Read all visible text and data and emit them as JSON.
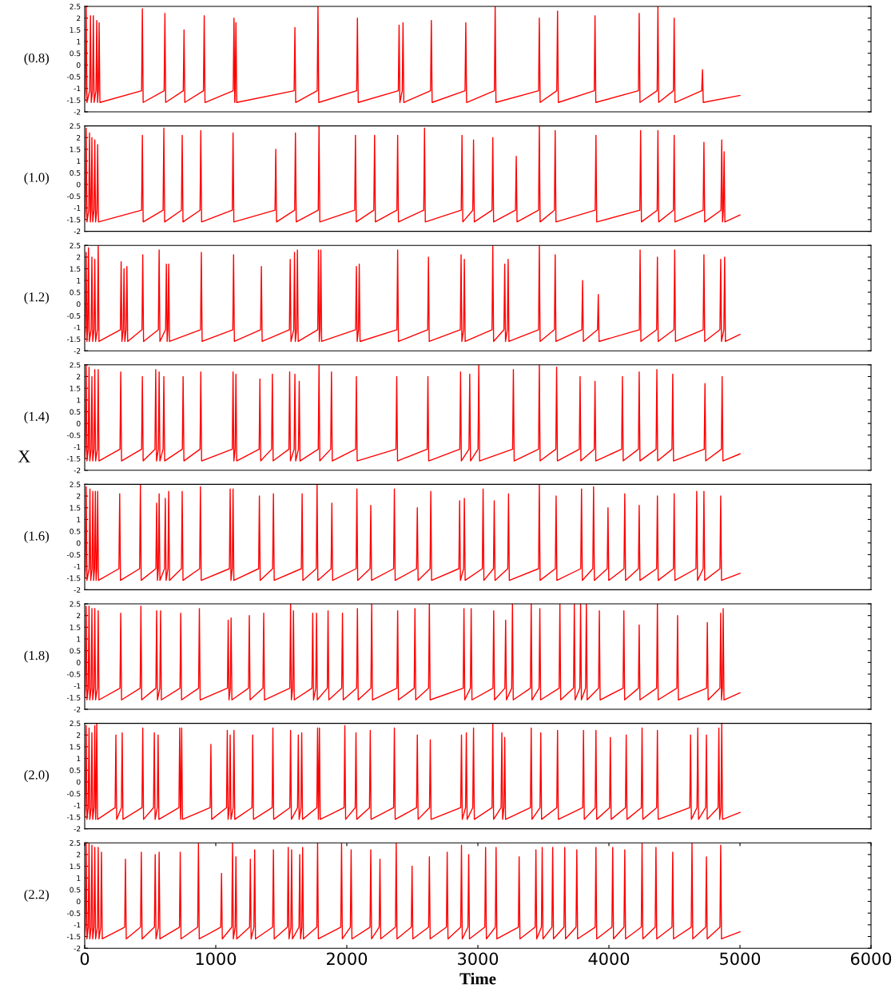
{
  "chart_data": [
    {
      "type": "line",
      "ylabel": "(0.8)",
      "color": "#ff0000",
      "xlim": [
        0,
        6000
      ],
      "ylim": [
        -2,
        2.5
      ],
      "yticks": [
        -2,
        -1.5,
        -1,
        -0.5,
        0,
        0.5,
        1,
        1.5,
        2,
        2.5
      ],
      "tick_labels": "y",
      "x": [
        0,
        5,
        11,
        17,
        38,
        44,
        50,
        60,
        66,
        72,
        86,
        92,
        98,
        104,
        110,
        116,
        434,
        440,
        446,
        606,
        612,
        618,
        752,
        758,
        764,
        906,
        912,
        918,
        1133,
        1139,
        1145,
        1148,
        1154,
        1160,
        1598,
        1604,
        1610,
        1774,
        1780,
        1786,
        2075,
        2081,
        2087,
        2393,
        2399,
        2405,
        2423,
        2429,
        2435,
        2639,
        2645,
        2651,
        2902,
        2908,
        2914,
        3126,
        3132,
        3138,
        3463,
        3469,
        3475,
        3602,
        3608,
        3614,
        3888,
        3894,
        3900,
        4225,
        4231,
        4237,
        4368,
        4374,
        4380,
        4492,
        4498,
        4504,
        4708,
        4714,
        4720,
        5000
      ],
      "values": [
        -1.5,
        -1.1,
        2.5,
        -1.6,
        -1.1,
        2.1,
        -1.6,
        -1.1,
        2.1,
        -1.6,
        -1.1,
        1.9,
        -1.6,
        -1.1,
        1.8,
        -1.6,
        -1.1,
        2.4,
        -1.6,
        -1.1,
        2.2,
        -1.6,
        -1.1,
        1.5,
        -1.6,
        -1.1,
        2.1,
        -1.6,
        -1.1,
        2.0,
        -1.6,
        -1.1,
        1.8,
        -1.6,
        -1.1,
        1.6,
        -1.6,
        -1.1,
        2.5,
        -1.6,
        -1.1,
        2.0,
        -1.6,
        -1.1,
        1.7,
        -1.6,
        -1.1,
        1.8,
        -1.6,
        -1.1,
        1.9,
        -1.6,
        -1.1,
        1.8,
        -1.6,
        -1.1,
        2.5,
        -1.6,
        -1.1,
        2.0,
        -1.6,
        -1.1,
        2.3,
        -1.6,
        -1.1,
        2.1,
        -1.6,
        -1.1,
        2.2,
        -1.6,
        -1.1,
        2.5,
        -1.6,
        -1.1,
        2.0,
        -1.6,
        -1.1,
        -0.2,
        -1.6,
        -1.3
      ]
    },
    {
      "type": "line",
      "ylabel": "(1.0)",
      "color": "#ff0000",
      "xlim": [
        0,
        6000
      ],
      "ylim": [
        -2,
        2.5
      ],
      "yticks": [
        -2,
        -1.5,
        -1,
        -0.5,
        0,
        0.5,
        1,
        1.5,
        2,
        2.5
      ],
      "tick_labels": "y",
      "x": [
        0,
        5,
        11,
        17,
        31,
        37,
        43,
        49,
        55,
        61,
        71,
        77,
        83,
        93,
        99,
        105,
        434,
        440,
        446,
        598,
        604,
        610,
        738,
        744,
        750,
        880,
        886,
        892,
        1126,
        1132,
        1138,
        1452,
        1458,
        1464,
        1602,
        1608,
        1614,
        1782,
        1788,
        1794,
        2060,
        2066,
        2072,
        2206,
        2212,
        2218,
        2382,
        2388,
        2394,
        2587,
        2593,
        2599,
        2873,
        2879,
        2885,
        2961,
        2967,
        2973,
        3108,
        3114,
        3120,
        3287,
        3293,
        3299,
        3463,
        3469,
        3475,
        3584,
        3590,
        3596,
        3895,
        3901,
        3907,
        4236,
        4242,
        4248,
        4368,
        4374,
        4380,
        4492,
        4498,
        4504,
        4719,
        4725,
        4731,
        4855,
        4861,
        4867,
        4873,
        4879,
        4885,
        5000
      ],
      "values": [
        -1.5,
        -1.1,
        2.4,
        -1.6,
        -1.1,
        2.2,
        -1.6,
        -1.1,
        2.0,
        -1.6,
        -1.1,
        1.9,
        -1.6,
        -1.1,
        1.7,
        -1.6,
        -1.1,
        2.1,
        -1.6,
        -1.1,
        2.4,
        -1.6,
        -1.1,
        2.1,
        -1.6,
        -1.1,
        2.3,
        -1.6,
        -1.1,
        2.2,
        -1.6,
        -1.1,
        1.5,
        -1.6,
        -1.1,
        2.2,
        -1.6,
        -1.1,
        2.5,
        -1.6,
        -1.1,
        2.1,
        -1.6,
        -1.1,
        2.1,
        -1.6,
        -1.1,
        2.1,
        -1.6,
        -1.1,
        2.4,
        -1.6,
        -1.1,
        2.1,
        -1.6,
        -1.1,
        1.9,
        -1.6,
        -1.1,
        2.0,
        -1.6,
        -1.1,
        1.2,
        -1.6,
        -1.1,
        2.5,
        -1.6,
        -1.1,
        2.3,
        -1.6,
        -1.1,
        2.1,
        -1.6,
        -1.1,
        2.3,
        -1.6,
        -1.1,
        2.3,
        -1.6,
        -1.1,
        2.1,
        -1.6,
        -1.1,
        1.8,
        -1.6,
        -1.1,
        1.9,
        -1.6,
        -1.1,
        1.4,
        -1.6,
        -1.3
      ]
    },
    {
      "type": "line",
      "ylabel": "(1.2)",
      "color": "#ff0000",
      "xlim": [
        0,
        6000
      ],
      "ylim": [
        -2,
        2.5
      ],
      "yticks": [
        -2,
        -1.5,
        -1,
        -0.5,
        0,
        0.5,
        1,
        1.5,
        2,
        2.5
      ],
      "tick_labels": "y",
      "x": [
        0,
        5,
        11,
        17,
        23,
        29,
        35,
        49,
        55,
        61,
        71,
        77,
        83,
        97,
        103,
        109,
        272,
        278,
        284,
        294,
        300,
        306,
        316,
        322,
        328,
        437,
        443,
        449,
        562,
        568,
        574,
        617,
        623,
        629,
        635,
        641,
        647,
        884,
        890,
        896,
        1130,
        1136,
        1142,
        1342,
        1348,
        1354,
        1562,
        1568,
        1574,
        1595,
        1601,
        1607,
        1617,
        1623,
        1629,
        1778,
        1784,
        1790,
        1796,
        1802,
        1808,
        2067,
        2073,
        2079,
        2089,
        2095,
        2101,
        2382,
        2388,
        2394,
        2617,
        2623,
        2629,
        2866,
        2872,
        2878,
        2891,
        2897,
        2903,
        3108,
        3114,
        3120,
        3199,
        3205,
        3211,
        3225,
        3231,
        3237,
        3463,
        3469,
        3475,
        3584,
        3590,
        3596,
        3793,
        3799,
        3805,
        3913,
        3919,
        3925,
        4232,
        4238,
        4244,
        4364,
        4370,
        4376,
        4496,
        4502,
        4508,
        4719,
        4725,
        4731,
        4847,
        4853,
        4859,
        4877,
        4883,
        4889,
        5000
      ],
      "values": [
        -1.5,
        -1.1,
        2.2,
        -1.6,
        -1.1,
        2.4,
        -1.6,
        -1.1,
        2.0,
        -1.6,
        -1.1,
        1.9,
        -1.6,
        -1.1,
        2.5,
        -1.6,
        -1.1,
        1.8,
        -1.6,
        -1.1,
        1.5,
        -1.6,
        -1.1,
        1.6,
        -1.6,
        -1.1,
        2.1,
        -1.6,
        -1.1,
        2.3,
        -1.6,
        -1.1,
        1.7,
        -1.6,
        -1.1,
        1.7,
        -1.6,
        -1.1,
        2.2,
        -1.6,
        -1.1,
        2.1,
        -1.6,
        -1.1,
        1.6,
        -1.6,
        -1.1,
        1.9,
        -1.6,
        -1.1,
        2.2,
        -1.6,
        -1.1,
        2.3,
        -1.6,
        -1.1,
        2.3,
        -1.6,
        -1.1,
        2.3,
        -1.6,
        -1.1,
        1.6,
        -1.6,
        -1.1,
        1.7,
        -1.6,
        -1.1,
        2.3,
        -1.6,
        -1.1,
        2.0,
        -1.6,
        -1.1,
        2.1,
        -1.6,
        -1.1,
        1.9,
        -1.6,
        -1.1,
        2.5,
        -1.6,
        -1.1,
        1.7,
        -1.6,
        -1.1,
        1.9,
        -1.6,
        -1.1,
        2.5,
        -1.6,
        -1.1,
        2.1,
        -1.6,
        -1.1,
        1.0,
        -1.6,
        -1.1,
        0.4,
        -1.6,
        -1.1,
        2.3,
        -1.6,
        -1.1,
        2.0,
        -1.6,
        -1.1,
        2.3,
        -1.6,
        -1.1,
        2.1,
        -1.6,
        -1.1,
        1.9,
        -1.6,
        -1.1,
        2.0,
        -1.6,
        -1.3
      ]
    },
    {
      "type": "line",
      "ylabel": "(1.4)",
      "color": "#ff0000",
      "xlim": [
        0,
        6000
      ],
      "ylim": [
        -2,
        2.5
      ],
      "yticks": [
        -2,
        -1.5,
        -1,
        -0.5,
        0,
        0.5,
        1,
        1.5,
        2,
        2.5
      ],
      "tick_labels": "y",
      "x": [
        0,
        5,
        11,
        17,
        27,
        33,
        39,
        49,
        55,
        61,
        71,
        77,
        83,
        97,
        103,
        109,
        269,
        275,
        281,
        434,
        440,
        446,
        536,
        542,
        548,
        562,
        568,
        574,
        598,
        604,
        610,
        745,
        751,
        757,
        880,
        886,
        892,
        1126,
        1132,
        1138,
        1148,
        1154,
        1160,
        1331,
        1337,
        1343,
        1426,
        1432,
        1438,
        1558,
        1564,
        1570,
        1598,
        1604,
        1610,
        1631,
        1637,
        1643,
        1782,
        1788,
        1794,
        1877,
        1883,
        1889,
        2067,
        2073,
        2079,
        2375,
        2381,
        2387,
        2613,
        2619,
        2625,
        2862,
        2868,
        2874,
        2932,
        2938,
        2944,
        3001,
        3007,
        3013,
        3265,
        3271,
        3277,
        3463,
        3469,
        3475,
        3595,
        3601,
        3607,
        3774,
        3780,
        3786,
        3888,
        3894,
        3900,
        4097,
        4103,
        4109,
        4225,
        4231,
        4237,
        4360,
        4366,
        4372,
        4481,
        4487,
        4493,
        4727,
        4733,
        4739,
        4858,
        4864,
        4870,
        5000
      ],
      "values": [
        -1.5,
        -1.1,
        2.5,
        -1.6,
        -1.1,
        2.4,
        -1.6,
        -1.1,
        2.0,
        -1.6,
        -1.1,
        2.3,
        -1.6,
        -1.1,
        2.3,
        -1.6,
        -1.1,
        2.2,
        -1.6,
        -1.1,
        2.0,
        -1.6,
        -1.1,
        2.3,
        -1.6,
        -1.1,
        2.2,
        -1.6,
        -1.1,
        2.0,
        -1.6,
        -1.1,
        2.0,
        -1.6,
        -1.1,
        2.2,
        -1.6,
        -1.1,
        2.2,
        -1.6,
        -1.1,
        2.1,
        -1.6,
        -1.1,
        1.9,
        -1.6,
        -1.1,
        2.1,
        -1.6,
        -1.1,
        2.2,
        -1.6,
        -1.1,
        2.1,
        -1.6,
        -1.1,
        1.8,
        -1.6,
        -1.1,
        2.5,
        -1.6,
        -1.1,
        2.2,
        -1.6,
        -1.1,
        2.0,
        -1.6,
        -1.1,
        2.0,
        -1.6,
        -1.1,
        2.0,
        -1.6,
        -1.1,
        2.2,
        -1.6,
        -1.1,
        2.1,
        -1.6,
        -1.1,
        2.5,
        -1.6,
        -1.1,
        2.3,
        -1.6,
        -1.1,
        2.5,
        -1.6,
        -1.1,
        2.4,
        -1.6,
        -1.1,
        2.0,
        -1.6,
        -1.1,
        1.8,
        -1.6,
        -1.1,
        2.0,
        -1.6,
        -1.1,
        2.2,
        -1.6,
        -1.1,
        2.3,
        -1.6,
        -1.1,
        2.1,
        -1.6,
        -1.1,
        1.7,
        -1.6,
        -1.1,
        2.0,
        -1.6,
        -1.3
      ]
    },
    {
      "type": "line",
      "ylabel": "(1.6)",
      "color": "#ff0000",
      "xlim": [
        0,
        6000
      ],
      "ylim": [
        -2,
        2.5
      ],
      "yticks": [
        -2,
        -1.5,
        -1,
        -0.5,
        0,
        0.5,
        1,
        1.5,
        2,
        2.5
      ],
      "tick_labels": "y",
      "annotations": [
        "X"
      ],
      "x": [
        0,
        5,
        11,
        17,
        34,
        40,
        46,
        56,
        62,
        68,
        75,
        81,
        87,
        93,
        99,
        105,
        261,
        267,
        273,
        419,
        425,
        431,
        543,
        549,
        555,
        562,
        568,
        574,
        609,
        615,
        621,
        635,
        641,
        647,
        738,
        744,
        750,
        877,
        883,
        889,
        1104,
        1110,
        1116,
        1126,
        1132,
        1138,
        1327,
        1333,
        1339,
        1434,
        1440,
        1446,
        1653,
        1659,
        1665,
        1767,
        1773,
        1779,
        1880,
        1886,
        1892,
        2071,
        2077,
        2083,
        2177,
        2183,
        2189,
        2357,
        2363,
        2369,
        2532,
        2538,
        2544,
        2635,
        2641,
        2647,
        2855,
        2861,
        2867,
        2891,
        2897,
        2903,
        3034,
        3040,
        3046,
        3119,
        3125,
        3131,
        3228,
        3234,
        3240,
        3463,
        3469,
        3475,
        3591,
        3597,
        3603,
        3785,
        3791,
        3797,
        3877,
        3883,
        3889,
        3987,
        3993,
        3999,
        4115,
        4121,
        4127,
        4225,
        4231,
        4237,
        4364,
        4370,
        4376,
        4492,
        4498,
        4504,
        4664,
        4670,
        4676,
        4719,
        4725,
        4731,
        4847,
        4853,
        4859,
        5000
      ],
      "values": [
        -1.5,
        -1.1,
        2.4,
        -1.6,
        -1.1,
        2.3,
        -1.6,
        -1.1,
        2.2,
        -1.6,
        -1.1,
        2.2,
        -1.6,
        -1.1,
        2.2,
        -1.6,
        -1.1,
        2.1,
        -1.6,
        -1.1,
        2.5,
        -1.6,
        -1.1,
        1.7,
        -1.6,
        -1.1,
        2.1,
        -1.6,
        -1.1,
        1.9,
        -1.6,
        -1.1,
        2.2,
        -1.6,
        -1.1,
        2.2,
        -1.6,
        -1.1,
        2.4,
        -1.6,
        -1.1,
        2.3,
        -1.6,
        -1.1,
        2.3,
        -1.6,
        -1.1,
        2.0,
        -1.6,
        -1.1,
        2.1,
        -1.6,
        -1.1,
        2.1,
        -1.6,
        -1.1,
        2.5,
        -1.6,
        -1.1,
        1.7,
        -1.6,
        -1.1,
        2.3,
        -1.6,
        -1.1,
        1.6,
        -1.6,
        -1.1,
        2.3,
        -1.6,
        -1.1,
        1.5,
        -1.6,
        -1.1,
        2.2,
        -1.6,
        -1.1,
        1.8,
        -1.6,
        -1.1,
        1.9,
        -1.6,
        -1.1,
        2.3,
        -1.6,
        -1.1,
        1.8,
        -1.6,
        -1.1,
        2.1,
        -1.6,
        -1.1,
        2.5,
        -1.6,
        -1.1,
        2.0,
        -1.6,
        -1.1,
        2.3,
        -1.6,
        -1.1,
        2.4,
        -1.6,
        -1.1,
        1.5,
        -1.6,
        -1.1,
        2.1,
        -1.6,
        -1.1,
        1.6,
        -1.6,
        -1.1,
        2.0,
        -1.6,
        -1.1,
        2.1,
        -1.6,
        -1.1,
        2.2,
        -1.6,
        -1.1,
        2.2,
        -1.6,
        -1.1,
        2.0,
        -1.6,
        -1.3
      ]
    },
    {
      "type": "line",
      "ylabel": "(1.8)",
      "color": "#ff0000",
      "xlim": [
        0,
        6000
      ],
      "ylim": [
        -2,
        2.5
      ],
      "yticks": [
        -2,
        -1.5,
        -1,
        -0.5,
        0,
        0.5,
        1,
        1.5,
        2,
        2.5
      ],
      "tick_labels": "y",
      "x": [
        0,
        5,
        11,
        17,
        27,
        33,
        39,
        49,
        55,
        61,
        71,
        77,
        83,
        97,
        103,
        109,
        269,
        275,
        281,
        423,
        429,
        435,
        543,
        549,
        555,
        573,
        579,
        585,
        727,
        733,
        739,
        869,
        875,
        881,
        1089,
        1095,
        1101,
        1111,
        1117,
        1123,
        1250,
        1256,
        1262,
        1360,
        1366,
        1372,
        1565,
        1571,
        1577,
        1587,
        1593,
        1599,
        1734,
        1740,
        1746,
        1763,
        1769,
        1775,
        1851,
        1857,
        1863,
        1961,
        1967,
        1973,
        2075,
        2081,
        2087,
        2184,
        2190,
        2196,
        2382,
        2388,
        2394,
        2514,
        2520,
        2526,
        2624,
        2630,
        2636,
        2888,
        2894,
        2900,
        2943,
        2949,
        2955,
        3115,
        3121,
        3127,
        3206,
        3212,
        3218,
        3258,
        3264,
        3270,
        3401,
        3407,
        3413,
        3467,
        3473,
        3479,
        3620,
        3626,
        3632,
        3730,
        3736,
        3742,
        3778,
        3784,
        3790,
        3822,
        3828,
        3834,
        3921,
        3927,
        3933,
        4108,
        4114,
        4120,
        4225,
        4231,
        4237,
        4364,
        4370,
        4376,
        4518,
        4524,
        4530,
        4745,
        4751,
        4757,
        4847,
        4853,
        4859,
        4866,
        4872,
        4878,
        5000
      ],
      "values": [
        -1.5,
        -1.1,
        2.4,
        -1.6,
        -1.1,
        2.4,
        -1.6,
        -1.1,
        2.3,
        -1.6,
        -1.1,
        2.3,
        -1.6,
        -1.1,
        2.2,
        -1.6,
        -1.1,
        2.1,
        -1.6,
        -1.1,
        2.4,
        -1.6,
        -1.1,
        2.2,
        -1.6,
        -1.1,
        2.2,
        -1.6,
        -1.1,
        2.1,
        -1.6,
        -1.1,
        2.3,
        -1.6,
        -1.1,
        1.8,
        -1.6,
        -1.1,
        1.9,
        -1.6,
        -1.1,
        2.0,
        -1.6,
        -1.1,
        2.1,
        -1.6,
        -1.1,
        2.5,
        -1.6,
        -1.1,
        2.2,
        -1.6,
        -1.1,
        2.1,
        -1.6,
        -1.1,
        2.1,
        -1.6,
        -1.1,
        2.2,
        -1.6,
        -1.1,
        2.1,
        -1.6,
        -1.1,
        2.3,
        -1.6,
        -1.1,
        2.5,
        -1.6,
        -1.1,
        2.2,
        -1.6,
        -1.1,
        2.3,
        -1.6,
        -1.1,
        2.5,
        -1.6,
        -1.1,
        2.3,
        -1.6,
        -1.1,
        2.3,
        -1.6,
        -1.1,
        2.2,
        -1.6,
        -1.1,
        1.8,
        -1.6,
        -1.1,
        2.5,
        -1.6,
        -1.1,
        2.5,
        -1.6,
        -1.1,
        2.3,
        -1.6,
        -1.1,
        2.5,
        -1.6,
        -1.1,
        2.5,
        -1.6,
        -1.1,
        2.5,
        -1.6,
        -1.1,
        2.5,
        -1.6,
        -1.1,
        2.2,
        -1.6,
        -1.1,
        2.2,
        -1.6,
        -1.1,
        1.6,
        -1.6,
        -1.1,
        2.5,
        -1.6,
        -1.1,
        2.0,
        -1.6,
        -1.1,
        1.7,
        -1.6,
        -1.1,
        2.1,
        -1.6,
        -1.1,
        2.3,
        -1.6,
        -1.3
      ]
    },
    {
      "type": "line",
      "ylabel": "(2.0)",
      "color": "#ff0000",
      "xlim": [
        0,
        6000
      ],
      "ylim": [
        -2,
        2.5
      ],
      "yticks": [
        -2,
        -1.5,
        -1,
        -0.5,
        0,
        0.5,
        1,
        1.5,
        2,
        2.5
      ],
      "tick_labels": "y",
      "x": [
        0,
        5,
        11,
        17,
        27,
        33,
        39,
        49,
        55,
        61,
        71,
        77,
        83,
        86,
        92,
        98,
        232,
        238,
        244,
        280,
        286,
        292,
        437,
        443,
        449,
        525,
        531,
        537,
        554,
        560,
        566,
        719,
        725,
        731,
        734,
        740,
        746,
        957,
        963,
        969,
        1082,
        1088,
        1094,
        1104,
        1110,
        1116,
        1133,
        1139,
        1145,
        1276,
        1282,
        1288,
        1430,
        1436,
        1442,
        1565,
        1571,
        1577,
        1624,
        1630,
        1636,
        1650,
        1656,
        1662,
        1771,
        1777,
        1783,
        1785,
        1791,
        1797,
        1979,
        1985,
        1991,
        2064,
        2070,
        2076,
        2173,
        2179,
        2185,
        2357,
        2363,
        2369,
        2532,
        2538,
        2544,
        2631,
        2637,
        2643,
        2869,
        2875,
        2881,
        2906,
        2912,
        2918,
        2961,
        2967,
        2973,
        3108,
        3114,
        3120,
        3177,
        3183,
        3189,
        3199,
        3205,
        3211,
        3401,
        3407,
        3413,
        3474,
        3480,
        3486,
        3602,
        3608,
        3614,
        3800,
        3806,
        3812,
        3895,
        3901,
        3907,
        4005,
        4011,
        4017,
        4126,
        4132,
        4138,
        4247,
        4253,
        4259,
        4364,
        4370,
        4376,
        4617,
        4623,
        4629,
        4672,
        4678,
        4684,
        4738,
        4744,
        4750,
        4833,
        4839,
        4845,
        4855,
        4861,
        4867,
        5000
      ],
      "values": [
        -1.5,
        -1.1,
        2.4,
        -1.6,
        -1.1,
        2.3,
        -1.6,
        -1.1,
        2.1,
        -1.6,
        -1.1,
        2.4,
        -1.6,
        -1.1,
        2.5,
        -1.6,
        -1.1,
        2.0,
        -1.6,
        -1.1,
        2.1,
        -1.6,
        -1.1,
        2.3,
        -1.6,
        -1.1,
        2.1,
        -1.6,
        -1.1,
        2.0,
        -1.6,
        -1.1,
        2.3,
        -1.6,
        -1.1,
        2.3,
        -1.6,
        -1.1,
        1.6,
        -1.6,
        -1.1,
        2.2,
        -1.6,
        -1.1,
        2.0,
        -1.6,
        -1.1,
        2.2,
        -1.6,
        -1.1,
        2.0,
        -1.6,
        -1.1,
        2.3,
        -1.6,
        -1.1,
        2.2,
        -1.6,
        -1.1,
        2.0,
        -1.6,
        -1.1,
        2.1,
        -1.6,
        -1.1,
        2.3,
        -1.6,
        -1.1,
        2.3,
        -1.6,
        -1.1,
        2.4,
        -1.6,
        -1.1,
        2.1,
        -1.6,
        -1.1,
        2.2,
        -1.6,
        -1.1,
        2.3,
        -1.6,
        -1.1,
        2.0,
        -1.6,
        -1.1,
        1.8,
        -1.6,
        -1.1,
        2.0,
        -1.6,
        -1.1,
        2.1,
        -1.6,
        -1.1,
        2.3,
        -1.6,
        -1.1,
        2.5,
        -1.6,
        -1.1,
        2.1,
        -1.6,
        -1.1,
        1.9,
        -1.6,
        -1.1,
        2.3,
        -1.6,
        -1.1,
        2.1,
        -1.6,
        -1.1,
        2.2,
        -1.6,
        -1.1,
        2.2,
        -1.6,
        -1.1,
        2.2,
        -1.6,
        -1.1,
        1.9,
        -1.6,
        -1.1,
        2.0,
        -1.6,
        -1.1,
        2.3,
        -1.6,
        -1.1,
        2.2,
        -1.6,
        -1.1,
        2.0,
        -1.6,
        -1.1,
        2.3,
        -1.6,
        -1.1,
        2.0,
        -1.6,
        -1.1,
        2.3,
        -1.6,
        -1.1,
        2.5,
        -1.6,
        -1.3
      ]
    },
    {
      "type": "line",
      "ylabel": "(2.2)",
      "xlabel": "Time",
      "color": "#ff0000",
      "xlim": [
        0,
        6000
      ],
      "ylim": [
        -2,
        2.5
      ],
      "xticks": [
        0,
        1000,
        2000,
        3000,
        4000,
        5000,
        6000
      ],
      "yticks": [
        -2,
        -1.5,
        -1,
        -0.5,
        0,
        0.5,
        1,
        1.5,
        2,
        2.5
      ],
      "x": [
        0,
        5,
        11,
        17,
        27,
        33,
        39,
        49,
        55,
        61,
        71,
        77,
        83,
        97,
        103,
        109,
        122,
        128,
        134,
        305,
        311,
        317,
        426,
        432,
        438,
        532,
        538,
        544,
        562,
        568,
        574,
        723,
        729,
        735,
        862,
        868,
        874,
        1038,
        1044,
        1050,
        1122,
        1128,
        1134,
        1148,
        1154,
        1160,
        1258,
        1264,
        1270,
        1291,
        1297,
        1303,
        1434,
        1440,
        1446,
        1547,
        1553,
        1559,
        1573,
        1579,
        1585,
        1635,
        1641,
        1647,
        1657,
        1663,
        1669,
        1771,
        1777,
        1783,
        1954,
        1960,
        1966,
        2027,
        2033,
        2039,
        2177,
        2183,
        2189,
        2247,
        2253,
        2259,
        2371,
        2377,
        2383,
        2492,
        2498,
        2504,
        2624,
        2630,
        2636,
        2760,
        2766,
        2772,
        2869,
        2875,
        2881,
        2924,
        2930,
        2936,
        3053,
        3059,
        3065,
        3133,
        3139,
        3145,
        3309,
        3315,
        3321,
        3437,
        3443,
        3449,
        3485,
        3491,
        3497,
        3565,
        3571,
        3577,
        3657,
        3663,
        3669,
        3749,
        3755,
        3761,
        3895,
        3901,
        3907,
        4023,
        4029,
        4035,
        4115,
        4121,
        4127,
        4247,
        4253,
        4259,
        4353,
        4359,
        4365,
        4481,
        4487,
        4493,
        4628,
        4634,
        4640,
        4738,
        4744,
        4750,
        4847,
        4853,
        4859,
        5000
      ],
      "values": [
        -1.5,
        -1.1,
        2.5,
        -1.6,
        -1.1,
        2.5,
        -1.6,
        -1.1,
        2.4,
        -1.6,
        -1.1,
        2.3,
        -1.6,
        -1.1,
        2.3,
        -1.6,
        -1.1,
        2.1,
        -1.6,
        -1.1,
        1.8,
        -1.6,
        -1.1,
        2.1,
        -1.6,
        -1.1,
        2.0,
        -1.6,
        -1.1,
        2.1,
        -1.6,
        -1.1,
        2.1,
        -1.6,
        -1.1,
        2.5,
        -1.6,
        -1.1,
        1.2,
        -1.6,
        -1.1,
        2.5,
        -1.6,
        -1.1,
        1.9,
        -1.6,
        -1.1,
        1.8,
        -1.6,
        -1.1,
        2.2,
        -1.6,
        -1.1,
        2.2,
        -1.6,
        -1.1,
        2.3,
        -1.6,
        -1.1,
        2.2,
        -1.6,
        -1.1,
        2.0,
        -1.6,
        -1.1,
        2.3,
        -1.6,
        -1.1,
        2.5,
        -1.6,
        -1.1,
        2.5,
        -1.6,
        -1.1,
        2.2,
        -1.6,
        -1.1,
        2.2,
        -1.6,
        -1.1,
        1.8,
        -1.6,
        -1.1,
        2.5,
        -1.6,
        -1.1,
        1.5,
        -1.6,
        -1.1,
        1.9,
        -1.6,
        -1.1,
        2.1,
        -1.6,
        -1.1,
        2.4,
        -1.6,
        -1.1,
        2.0,
        -1.6,
        -1.1,
        2.3,
        -1.6,
        -1.1,
        2.3,
        -1.6,
        -1.1,
        1.9,
        -1.6,
        -1.1,
        2.2,
        -1.6,
        -1.1,
        2.3,
        -1.6,
        -1.1,
        2.3,
        -1.6,
        -1.1,
        2.3,
        -1.6,
        -1.1,
        2.2,
        -1.6,
        -1.1,
        2.3,
        -1.6,
        -1.1,
        2.3,
        -1.6,
        -1.1,
        2.2,
        -1.6,
        -1.1,
        2.5,
        -1.6,
        -1.1,
        2.3,
        -1.6,
        -1.1,
        2.1,
        -1.6,
        -1.1,
        2.5,
        -1.6,
        -1.1,
        1.9,
        -1.6,
        -1.1,
        2.4,
        -1.6,
        -1.3
      ]
    }
  ]
}
